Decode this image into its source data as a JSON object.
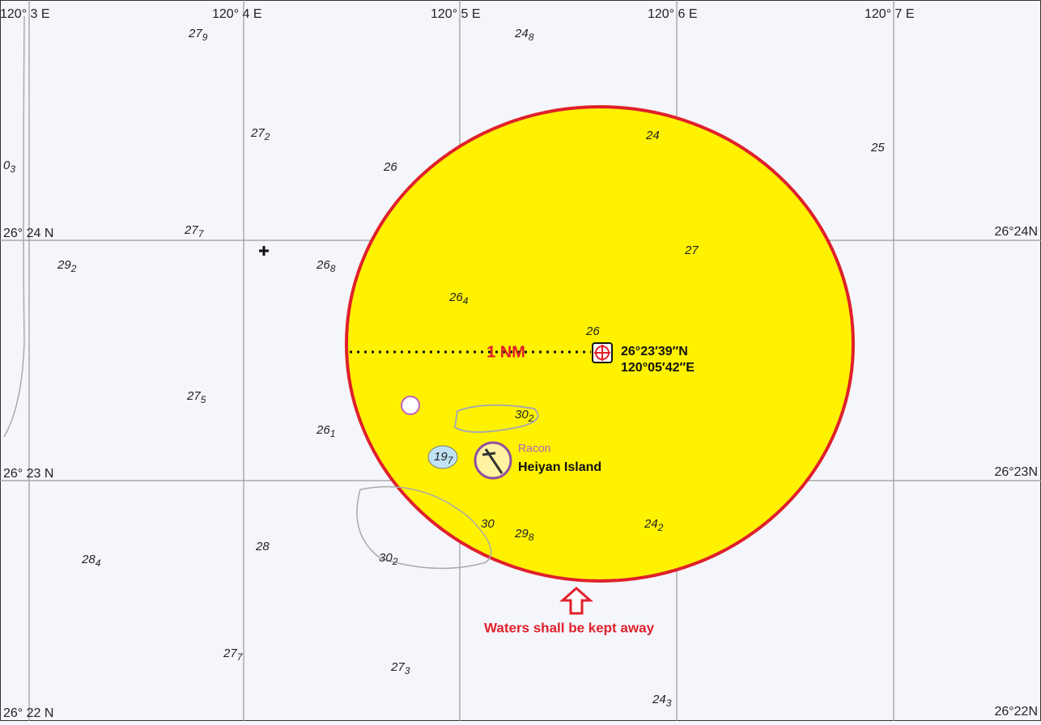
{
  "grid": {
    "longitudes": [
      "120° 3 E",
      "120° 4 E",
      "120° 5 E",
      "120° 6 E",
      "120° 7 E"
    ],
    "latitudes_left": [
      "26° 24 N",
      "26° 23 N",
      "26° 22 N"
    ],
    "latitudes_right": [
      "26°24N",
      "26°23N",
      "26°22N"
    ]
  },
  "soundings": [
    {
      "depth": "27",
      "sub": "9"
    },
    {
      "depth": "24",
      "sub": "8"
    },
    {
      "depth": "27",
      "sub": "2"
    },
    {
      "depth": "24"
    },
    {
      "depth": "25"
    },
    {
      "depth": "26"
    },
    {
      "depth": "0",
      "sub": "3"
    },
    {
      "depth": "27",
      "sub": "7"
    },
    {
      "depth": "27"
    },
    {
      "depth": "29",
      "sub": "2"
    },
    {
      "depth": "26",
      "sub": "8"
    },
    {
      "depth": "26",
      "sub": "4"
    },
    {
      "depth": "26"
    },
    {
      "depth": "27",
      "sub": "5"
    },
    {
      "depth": "26",
      "sub": "1"
    },
    {
      "depth": "30",
      "sub": "2"
    },
    {
      "depth": "19",
      "sub": "7"
    },
    {
      "depth": "30"
    },
    {
      "depth": "29",
      "sub": "8"
    },
    {
      "depth": "24",
      "sub": "2"
    },
    {
      "depth": "28"
    },
    {
      "depth": "30",
      "sub": "2"
    },
    {
      "depth": "28",
      "sub": "4"
    },
    {
      "depth": "27",
      "sub": "7"
    },
    {
      "depth": "27",
      "sub": "3"
    },
    {
      "depth": "24",
      "sub": "3"
    }
  ],
  "zone": {
    "radius_label": "1 NM",
    "center_lat": "26°23′39″N",
    "center_lon": "120°05′42″E",
    "warning": "Waters shall be kept away"
  },
  "island": {
    "name": "Heiyan Island",
    "racon": "Racon"
  }
}
